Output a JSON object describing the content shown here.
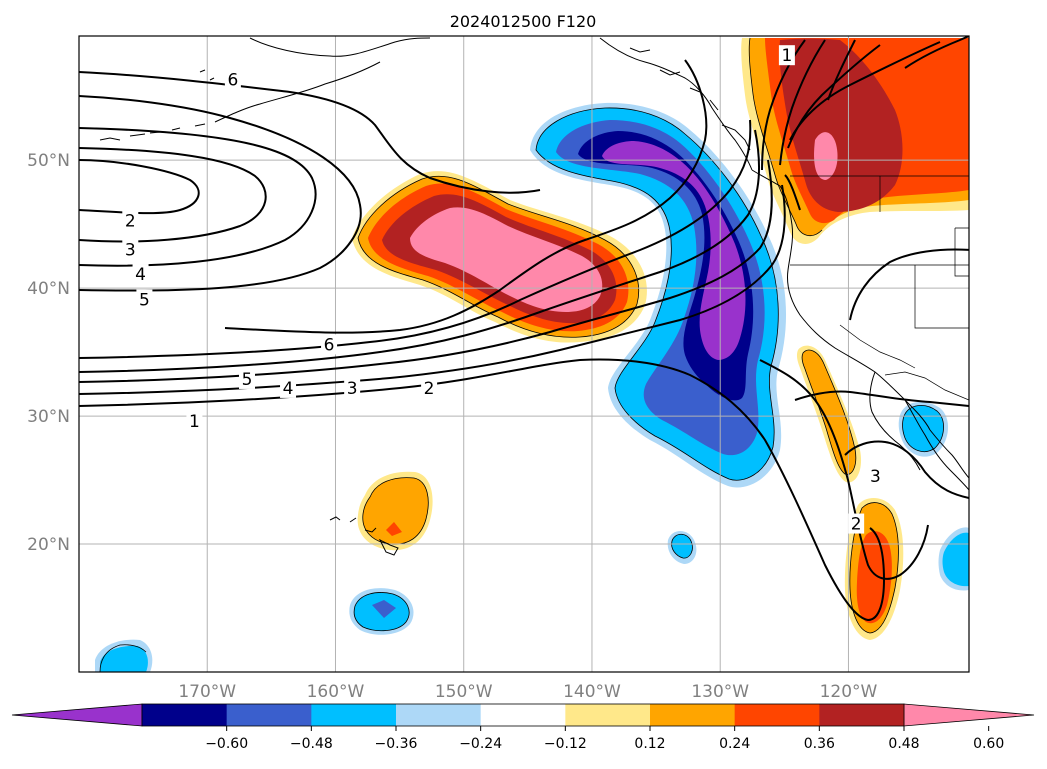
{
  "title": "2024012500 F120",
  "colors": {
    "background": "#ffffff",
    "grid": "#b3b3b3",
    "axis_label": "#808080",
    "contour": "#000000",
    "coast": "#000000"
  },
  "map": {
    "lon_ticks": [
      {
        "lon": -170,
        "label": "170°W"
      },
      {
        "lon": -160,
        "label": "160°W"
      },
      {
        "lon": -150,
        "label": "150°W"
      },
      {
        "lon": -140,
        "label": "140°W"
      },
      {
        "lon": -130,
        "label": "130°W"
      },
      {
        "lon": -120,
        "label": "120°W"
      }
    ],
    "lat_ticks": [
      {
        "lat": 50,
        "label": "50°N"
      },
      {
        "lat": 40,
        "label": "40°N"
      },
      {
        "lat": 30,
        "label": "30°N"
      },
      {
        "lat": 20,
        "label": "20°N"
      }
    ]
  },
  "colorbar": {
    "colors": [
      "#9932cc",
      "#00008b",
      "#3a5fcd",
      "#00bfff",
      "#add8f7",
      "#ffffff",
      "#ffe88a",
      "#ffa500",
      "#ff4500",
      "#b22222",
      "#ff88aa"
    ],
    "ticks": [
      "−0.60",
      "−0.48",
      "−0.36",
      "−0.24",
      "−0.12",
      "0.12",
      "0.24",
      "0.36",
      "0.48",
      "0.60"
    ]
  },
  "contour_labels": [
    {
      "text": "6",
      "lon": -168.0,
      "lat": 56.3
    },
    {
      "text": "2",
      "lon": -176.0,
      "lat": 45.3
    },
    {
      "text": "3",
      "lon": -176.0,
      "lat": 43.0
    },
    {
      "text": "4",
      "lon": -175.2,
      "lat": 41.1
    },
    {
      "text": "5",
      "lon": -174.9,
      "lat": 39.1
    },
    {
      "text": "6",
      "lon": -160.5,
      "lat": 35.6
    },
    {
      "text": "5",
      "lon": -166.9,
      "lat": 32.9
    },
    {
      "text": "4",
      "lon": -163.7,
      "lat": 32.2
    },
    {
      "text": "3",
      "lon": -158.7,
      "lat": 32.2
    },
    {
      "text": "2",
      "lon": -152.7,
      "lat": 32.2
    },
    {
      "text": "1",
      "lon": -171.0,
      "lat": 29.6
    },
    {
      "text": "1",
      "lon": -124.8,
      "lat": 58.2
    },
    {
      "text": "3",
      "lon": -117.9,
      "lat": 25.3
    },
    {
      "text": "2",
      "lon": -119.4,
      "lat": 21.6
    }
  ]
}
